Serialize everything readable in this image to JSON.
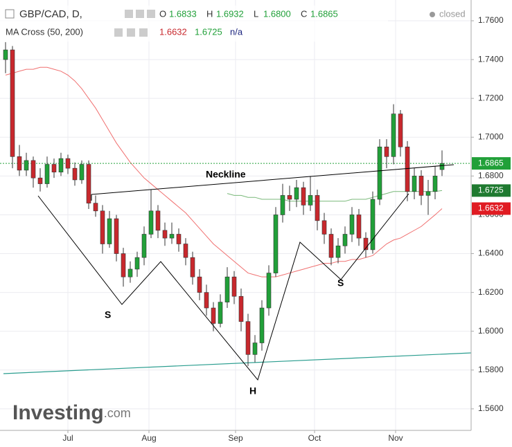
{
  "header": {
    "symbol": "GBP/CAD, D,",
    "ohlc_labels": [
      "O",
      "H",
      "L",
      "C"
    ],
    "ohlc_values": [
      "1.6833",
      "1.6932",
      "1.6800",
      "1.6865"
    ],
    "status": "closed",
    "indicator": "MA Cross (50, 200)",
    "indicator_values": [
      "1.6632",
      "1.6725",
      "n/a"
    ]
  },
  "annotations": {
    "neckline": "Neckline",
    "left_shoulder": "S",
    "head": "H",
    "right_shoulder": "S"
  },
  "watermark": {
    "brand": "Investing",
    "suffix": ".com"
  },
  "chart_data": {
    "type": "candlestick",
    "x": [
      0,
      1,
      2,
      3,
      4,
      5,
      6,
      7,
      8,
      9,
      10,
      11,
      12,
      13,
      14,
      15,
      16,
      17,
      18,
      19,
      20,
      21,
      22,
      23,
      24,
      25,
      26,
      27,
      28,
      29,
      30,
      31,
      32,
      33,
      34,
      35,
      36,
      37,
      38,
      39,
      40,
      41,
      42,
      43,
      44,
      45,
      46,
      47,
      48,
      49,
      50,
      51,
      52,
      53,
      54,
      55,
      56,
      57,
      58,
      59,
      60,
      61,
      62,
      63
    ],
    "open": [
      1.74,
      1.745,
      1.69,
      1.683,
      1.688,
      1.679,
      1.676,
      1.686,
      1.682,
      1.689,
      1.684,
      1.678,
      1.686,
      1.666,
      1.662,
      1.645,
      1.658,
      1.64,
      1.628,
      1.632,
      1.638,
      1.65,
      1.662,
      1.652,
      1.648,
      1.65,
      1.645,
      1.638,
      1.628,
      1.62,
      1.612,
      1.604,
      1.615,
      1.628,
      1.618,
      1.605,
      1.588,
      1.594,
      1.612,
      1.63,
      1.66,
      1.67,
      1.668,
      1.674,
      1.665,
      1.67,
      1.657,
      1.65,
      1.638,
      1.644,
      1.65,
      1.66,
      1.648,
      1.642,
      1.668,
      1.695,
      1.69,
      1.712,
      1.695,
      1.672,
      1.68,
      1.67,
      1.672,
      1.6833
    ],
    "high": [
      1.749,
      1.747,
      1.696,
      1.692,
      1.69,
      1.684,
      1.69,
      1.689,
      1.692,
      1.691,
      1.687,
      1.688,
      1.688,
      1.67,
      1.665,
      1.662,
      1.66,
      1.643,
      1.636,
      1.641,
      1.654,
      1.673,
      1.665,
      1.656,
      1.656,
      1.653,
      1.648,
      1.641,
      1.632,
      1.624,
      1.615,
      1.619,
      1.633,
      1.631,
      1.622,
      1.609,
      1.598,
      1.616,
      1.634,
      1.664,
      1.676,
      1.675,
      1.678,
      1.677,
      1.68,
      1.673,
      1.661,
      1.653,
      1.648,
      1.654,
      1.664,
      1.663,
      1.651,
      1.672,
      1.699,
      1.699,
      1.717,
      1.714,
      1.698,
      1.684,
      1.683,
      1.678,
      1.685,
      1.6932
    ],
    "low": [
      1.733,
      1.684,
      1.68,
      1.68,
      1.674,
      1.672,
      1.674,
      1.679,
      1.68,
      1.681,
      1.675,
      1.676,
      1.663,
      1.659,
      1.64,
      1.643,
      1.636,
      1.623,
      1.625,
      1.628,
      1.634,
      1.648,
      1.648,
      1.644,
      1.645,
      1.641,
      1.634,
      1.624,
      1.616,
      1.608,
      1.6,
      1.602,
      1.612,
      1.614,
      1.6,
      1.582,
      1.584,
      1.59,
      1.608,
      1.628,
      1.656,
      1.662,
      1.664,
      1.66,
      1.662,
      1.652,
      1.645,
      1.634,
      1.635,
      1.64,
      1.646,
      1.644,
      1.638,
      1.64,
      1.665,
      1.684,
      1.686,
      1.69,
      1.667,
      1.668,
      1.665,
      1.66,
      1.668,
      1.68
    ],
    "close": [
      1.745,
      1.69,
      1.683,
      1.688,
      1.679,
      1.676,
      1.686,
      1.682,
      1.689,
      1.684,
      1.678,
      1.686,
      1.666,
      1.662,
      1.645,
      1.658,
      1.64,
      1.628,
      1.632,
      1.638,
      1.65,
      1.662,
      1.652,
      1.648,
      1.65,
      1.645,
      1.638,
      1.628,
      1.62,
      1.612,
      1.604,
      1.615,
      1.628,
      1.618,
      1.605,
      1.588,
      1.594,
      1.612,
      1.63,
      1.66,
      1.67,
      1.668,
      1.674,
      1.665,
      1.67,
      1.657,
      1.65,
      1.638,
      1.644,
      1.65,
      1.66,
      1.648,
      1.642,
      1.668,
      1.695,
      1.69,
      1.712,
      1.695,
      1.672,
      1.68,
      1.67,
      1.672,
      1.68,
      1.6865
    ],
    "up_color": "#21a039",
    "down_color": "#c8282d",
    "overlays": [
      {
        "color": "#f07070",
        "values": [
          1.732,
          1.733,
          1.734,
          1.735,
          1.735,
          1.736,
          1.736,
          1.735,
          1.734,
          1.732,
          1.729,
          1.725,
          1.72,
          1.715,
          1.709,
          1.703,
          1.697,
          1.692,
          1.687,
          1.683,
          1.679,
          1.676,
          1.673,
          1.67,
          1.667,
          1.664,
          1.661,
          1.657,
          1.653,
          1.649,
          1.645,
          1.642,
          1.639,
          1.636,
          1.633,
          1.63,
          1.629,
          1.628,
          1.628,
          1.628,
          1.629,
          1.63,
          1.631,
          1.632,
          1.633,
          1.634,
          1.635,
          1.635,
          1.636,
          1.636,
          1.637,
          1.637,
          1.638,
          1.639,
          1.642,
          1.645,
          1.647,
          1.648,
          1.65,
          1.652,
          1.654,
          1.657,
          1.66,
          1.6632
        ]
      },
      {
        "color": "#78b878",
        "values": [
          null,
          null,
          null,
          null,
          null,
          null,
          null,
          null,
          null,
          null,
          null,
          null,
          null,
          null,
          null,
          null,
          null,
          null,
          null,
          null,
          null,
          null,
          null,
          null,
          null,
          null,
          null,
          null,
          null,
          null,
          null,
          null,
          1.671,
          1.67,
          1.67,
          1.669,
          1.669,
          1.668,
          1.668,
          1.668,
          1.668,
          1.667,
          1.667,
          1.667,
          1.667,
          1.667,
          1.667,
          1.667,
          1.667,
          1.667,
          1.668,
          1.668,
          1.668,
          1.669,
          1.67,
          1.671,
          1.672,
          1.672,
          1.672,
          1.672,
          1.672,
          1.672,
          1.672,
          1.6725
        ]
      }
    ],
    "xlim": [
      -0.8,
      67.2
    ],
    "xticks": [
      {
        "value": 9,
        "label": "Jul"
      },
      {
        "value": 20.7,
        "label": "Aug"
      },
      {
        "value": 33.2,
        "label": "Sep"
      },
      {
        "value": 44.6,
        "label": "Oct"
      },
      {
        "value": 56.3,
        "label": "Nov"
      }
    ],
    "ylim": [
      1.5489,
      1.7707
    ],
    "yticks": [
      {
        "value": 1.56,
        "label": "1.5600"
      },
      {
        "value": 1.58,
        "label": "1.5800"
      },
      {
        "value": 1.6,
        "label": "1.6000"
      },
      {
        "value": 1.62,
        "label": "1.6200"
      },
      {
        "value": 1.64,
        "label": "1.6400"
      },
      {
        "value": 1.66,
        "label": "1.6600"
      },
      {
        "value": 1.68,
        "label": "1.6800"
      },
      {
        "value": 1.7,
        "label": "1.7000"
      },
      {
        "value": 1.72,
        "label": "1.7200"
      },
      {
        "value": 1.74,
        "label": "1.7400"
      },
      {
        "value": 1.76,
        "label": "1.7600"
      }
    ],
    "grid": true
  }
}
